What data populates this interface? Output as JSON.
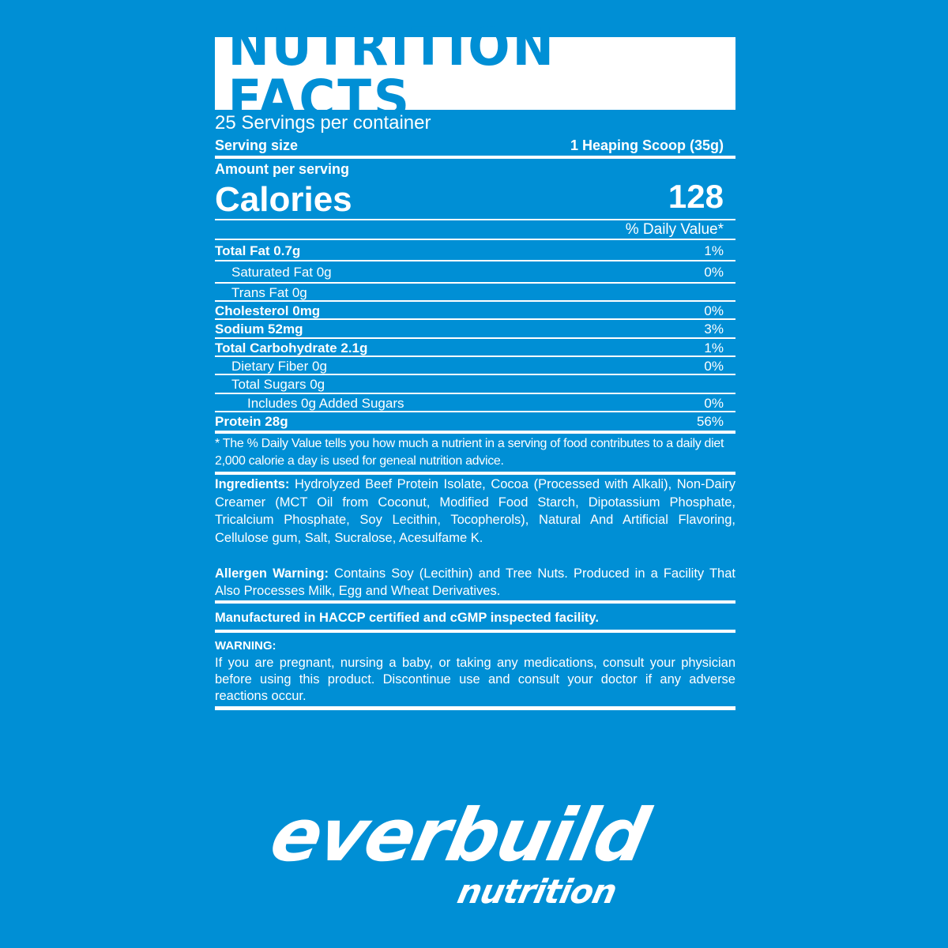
{
  "colors": {
    "background": "#008fd5",
    "panel_text": "#ffffff",
    "title_text": "#008fd5"
  },
  "title": "NUTRITION FACTS",
  "servings_per_container": "25 Servings per container",
  "serving_size_label": "Serving size",
  "serving_size_value": "1 Heaping Scoop (35g)",
  "amount_per_serving": "Amount per serving",
  "calories_label": "Calories",
  "calories_value": "128",
  "daily_value_header": "% Daily Value*",
  "nutrients": [
    {
      "label": "Total Fat 0.7g",
      "dv": "1%"
    },
    {
      "label": "Saturated Fat 0g",
      "dv": "0%"
    },
    {
      "label": "Trans Fat 0g",
      "dv": ""
    },
    {
      "label": "Cholesterol 0mg",
      "dv": "0%"
    },
    {
      "label": "Sodium 52mg",
      "dv": "3%"
    },
    {
      "label": "Total Carbohydrate 2.1g",
      "dv": "1%"
    },
    {
      "label": "Dietary Fiber 0g",
      "dv": "0%"
    },
    {
      "label": "Total Sugars 0g",
      "dv": ""
    },
    {
      "label": "Includes 0g Added Sugars",
      "dv": "0%"
    },
    {
      "label": "Protein 28g",
      "dv": "56%"
    }
  ],
  "footnote": "* The % Daily Value tells you how much a nutrient in a serving of food contributes to a daily diet 2,000 calorie a day is used for geneal nutrition advice.",
  "ingredients_label": "Ingredients:",
  "ingredients_text": "Hydrolyzed Beef Protein Isolate, Cocoa (Processed with Alkali), Non-Dairy Creamer (MCT Oil from Coconut, Modified Food Starch, Dipotassium Phosphate, Tricalcium Phosphate, Soy Lecithin, Tocopherols), Natural And Artificial Flavoring, Cellulose gum, Salt, Sucralose, Acesulfame K.",
  "allergen_label": "Allergen Warning:",
  "allergen_text": "Contains Soy (Lecithin) and Tree Nuts. Produced in a Facility That Also Processes Milk, Egg and Wheat Derivatives.",
  "manufactured": "Manufactured in HACCP certified and cGMP inspected facility.",
  "warning_label": "WARNING:",
  "warning_text": "If you are pregnant, nursing a baby, or taking any medications, consult your physician before using this product. Discontinue use and consult your doctor if any adverse reactions occur.",
  "logo": {
    "brand": "everbuild",
    "sub": "nutrition"
  }
}
